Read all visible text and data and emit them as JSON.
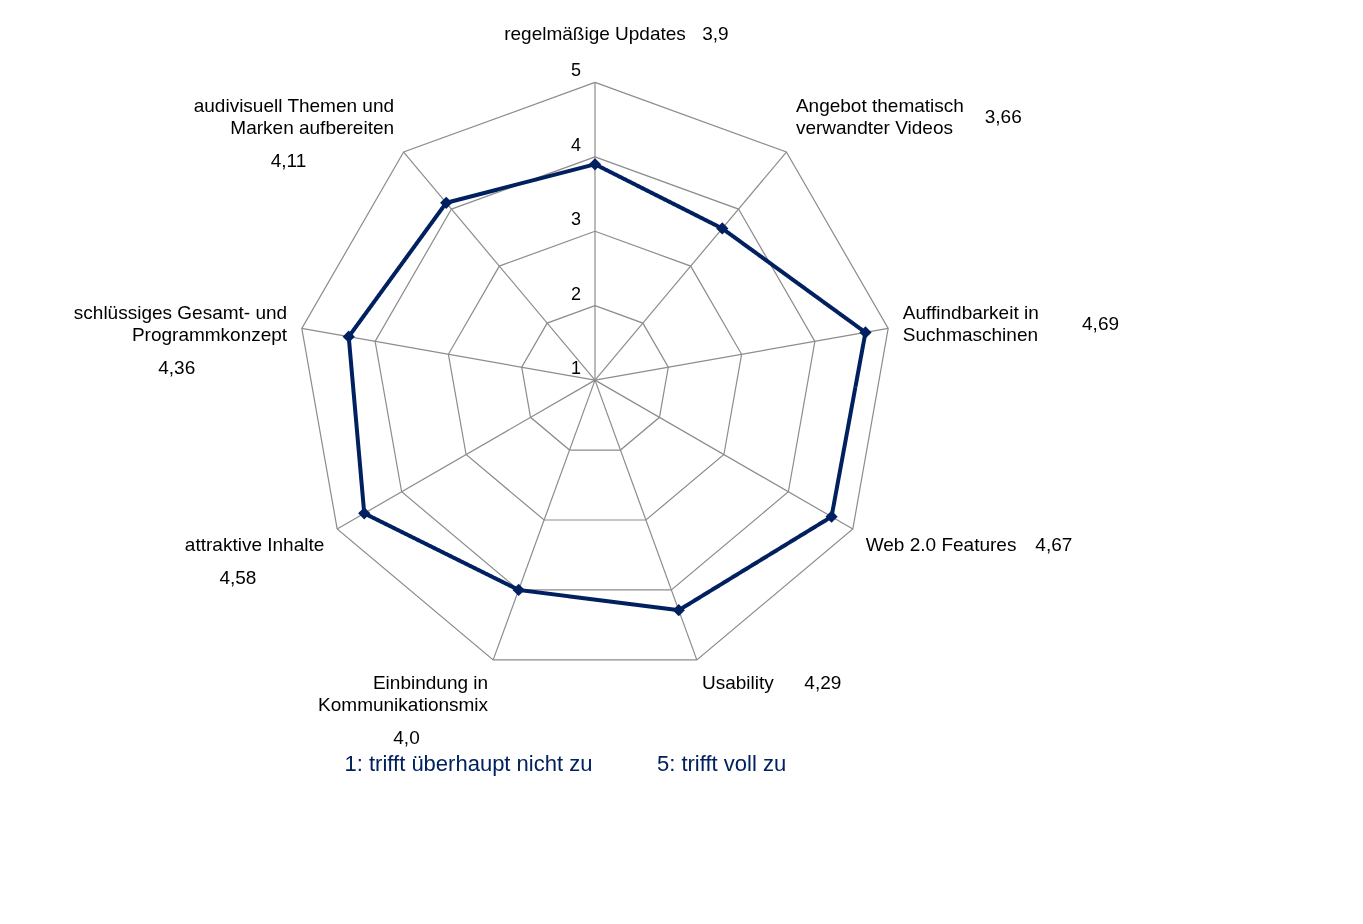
{
  "chart_data": {
    "type": "radar",
    "categories": [
      "regelmäßige Updates",
      "Angebot thematisch verwandter Videos",
      "Auffindbarkeit in Suchmaschinen",
      "Web 2.0 Features",
      "Usability",
      "Einbindung in Kommunikationsmix",
      "attraktive Inhalte",
      "schlüssiges Gesamt- und Programmkonzept",
      "audivisuell Themen und Marken aufbereiten"
    ],
    "series": [
      {
        "color": "#002060",
        "values": [
          3.9,
          3.66,
          4.69,
          4.67,
          4.29,
          4.0,
          4.58,
          4.36,
          4.11
        ]
      }
    ],
    "ylim": [
      1,
      5
    ],
    "yticks": [
      1,
      2,
      3,
      4,
      5
    ],
    "grid": true,
    "marker": "diamond",
    "line_style": "solid",
    "annotations": [
      "3,9",
      "3,66",
      "4,69",
      "4,67",
      "4,29",
      "4,0",
      "4,58",
      "4,36",
      "4,11",
      "1: trifft überhaupt nicht zu",
      "5: trifft voll zu"
    ]
  }
}
